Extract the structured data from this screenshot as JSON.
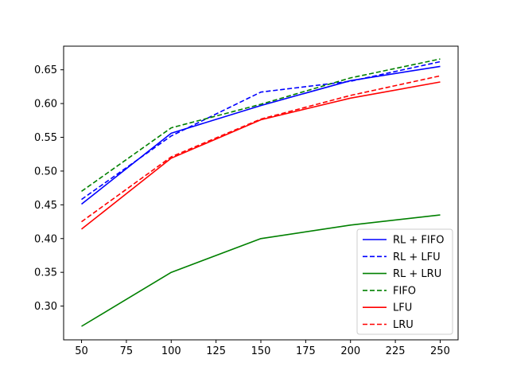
{
  "chart_data": {
    "type": "line",
    "title": "",
    "xlabel": "",
    "ylabel": "",
    "xlim": [
      40,
      260
    ],
    "ylim": [
      0.25,
      0.685
    ],
    "xticks": [
      50,
      75,
      100,
      125,
      150,
      175,
      200,
      225,
      250
    ],
    "xtick_labels": [
      "50",
      "75",
      "100",
      "125",
      "150",
      "175",
      "200",
      "225",
      "250"
    ],
    "yticks": [
      0.3,
      0.35,
      0.4,
      0.45,
      0.5,
      0.55,
      0.6,
      0.65
    ],
    "ytick_labels": [
      "0.30",
      "0.35",
      "0.40",
      "0.45",
      "0.50",
      "0.55",
      "0.60",
      "0.65"
    ],
    "grid": false,
    "legend_position": "lower-right",
    "x": [
      50,
      100,
      150,
      200,
      250
    ],
    "series": [
      {
        "name": "RL + FIFO",
        "values": [
          0.451,
          0.556,
          0.597,
          0.634,
          0.655
        ],
        "color": "#0000ff",
        "dash": "solid"
      },
      {
        "name": "RL + LFU",
        "values": [
          0.458,
          0.552,
          0.617,
          0.633,
          0.662
        ],
        "color": "#0000ff",
        "dash": "dashed"
      },
      {
        "name": "RL + LRU",
        "values": [
          0.27,
          0.35,
          0.4,
          0.42,
          0.435
        ],
        "color": "#008000",
        "dash": "solid"
      },
      {
        "name": "FIFO",
        "values": [
          0.47,
          0.564,
          0.599,
          0.638,
          0.666
        ],
        "color": "#008000",
        "dash": "dashed"
      },
      {
        "name": "LFU",
        "values": [
          0.414,
          0.519,
          0.576,
          0.608,
          0.632
        ],
        "color": "#ff0000",
        "dash": "solid"
      },
      {
        "name": "LRU",
        "values": [
          0.425,
          0.521,
          0.577,
          0.612,
          0.641
        ],
        "color": "#ff0000",
        "dash": "dashed"
      }
    ]
  }
}
